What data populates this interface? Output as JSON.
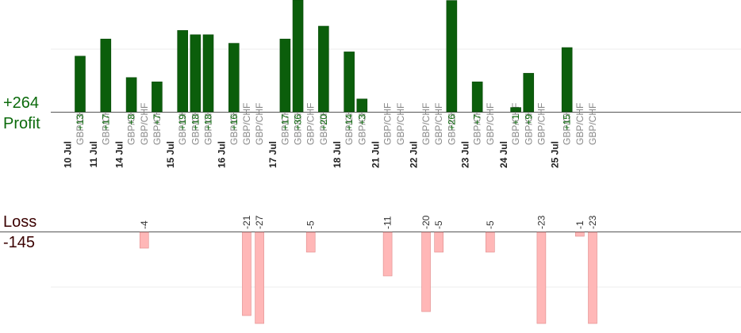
{
  "summary": {
    "profit_total": "+264",
    "profit_label": "Profit",
    "loss_label": "Loss",
    "loss_total": "-145"
  },
  "chart_data": {
    "type": "bar",
    "title": "",
    "xlabel": "",
    "ylabel": "",
    "grid": true,
    "colors": {
      "profit": "#0b5e0b",
      "loss": "#ffb7b7",
      "profit_text": "#0b6a0b",
      "loss_text": "#333333",
      "axis": "#555555"
    },
    "profit_axis_visible_max": 26,
    "loss_axis_visible_min": -23,
    "dates": [
      "10 Jul",
      "11 Jul",
      "14 Jul",
      "15 Jul",
      "16 Jul",
      "17 Jul",
      "18 Jul",
      "21 Jul",
      "22 Jul",
      "23 Jul",
      "24 Jul",
      "25 Jul"
    ],
    "trades": [
      {
        "date": "10 Jul",
        "symbol": "GBP/CHF",
        "profit": 13,
        "loss": null
      },
      {
        "date": "11 Jul",
        "symbol": "GBP/CHF",
        "profit": 17,
        "loss": null
      },
      {
        "date": "14 Jul",
        "symbol": "GBP/CHF",
        "profit": 8,
        "loss": null
      },
      {
        "date": "14 Jul",
        "symbol": "GBP/CHF",
        "profit": null,
        "loss": -4
      },
      {
        "date": "14 Jul",
        "symbol": "GBP/CHF",
        "profit": 7,
        "loss": null
      },
      {
        "date": "15 Jul",
        "symbol": "GBP/CHF",
        "profit": 19,
        "loss": null
      },
      {
        "date": "15 Jul",
        "symbol": "GBP/CHF",
        "profit": 18,
        "loss": null
      },
      {
        "date": "15 Jul",
        "symbol": "GBP/CHF",
        "profit": 18,
        "loss": null
      },
      {
        "date": "16 Jul",
        "symbol": "GBP/CHF",
        "profit": 16,
        "loss": null
      },
      {
        "date": "16 Jul",
        "symbol": "GBP/CHF",
        "profit": null,
        "loss": -21
      },
      {
        "date": "16 Jul",
        "symbol": "GBP/CHF",
        "profit": null,
        "loss": -27
      },
      {
        "date": "17 Jul",
        "symbol": "GBP/CHF",
        "profit": 17,
        "loss": null
      },
      {
        "date": "17 Jul",
        "symbol": "GBP/CHF",
        "profit": 36,
        "loss": null
      },
      {
        "date": "17 Jul",
        "symbol": "GBP/CHF",
        "profit": null,
        "loss": -5
      },
      {
        "date": "17 Jul",
        "symbol": "GBP/CHF",
        "profit": 20,
        "loss": null
      },
      {
        "date": "18 Jul",
        "symbol": "GBP/CHF",
        "profit": 14,
        "loss": null
      },
      {
        "date": "18 Jul",
        "symbol": "GBP/CHF",
        "profit": 3,
        "loss": null
      },
      {
        "date": "21 Jul",
        "symbol": "GBP/CHF",
        "profit": null,
        "loss": -11
      },
      {
        "date": "21 Jul",
        "symbol": "GBP/CHF",
        "profit": null,
        "loss": null
      },
      {
        "date": "22 Jul",
        "symbol": "GBP/CHF",
        "profit": null,
        "loss": -20
      },
      {
        "date": "22 Jul",
        "symbol": "GBP/CHF",
        "profit": null,
        "loss": -5
      },
      {
        "date": "22 Jul",
        "symbol": "GBP/CHF",
        "profit": 26,
        "loss": null
      },
      {
        "date": "23 Jul",
        "symbol": "GBP/CHF",
        "profit": 7,
        "loss": null
      },
      {
        "date": "23 Jul",
        "symbol": "GBP/CHF",
        "profit": null,
        "loss": -5
      },
      {
        "date": "24 Jul",
        "symbol": "GBP/CHF",
        "profit": 1,
        "loss": null
      },
      {
        "date": "24 Jul",
        "symbol": "GBP/CHF",
        "profit": 9,
        "loss": null
      },
      {
        "date": "24 Jul",
        "symbol": "GBP/CHF",
        "profit": null,
        "loss": -23
      },
      {
        "date": "25 Jul",
        "symbol": "GBP/CHF",
        "profit": 15,
        "loss": null
      },
      {
        "date": "25 Jul",
        "symbol": "GBP/CHF",
        "profit": null,
        "loss": -1
      },
      {
        "date": "25 Jul",
        "symbol": "GBP/CHF",
        "profit": null,
        "loss": -23
      }
    ]
  }
}
